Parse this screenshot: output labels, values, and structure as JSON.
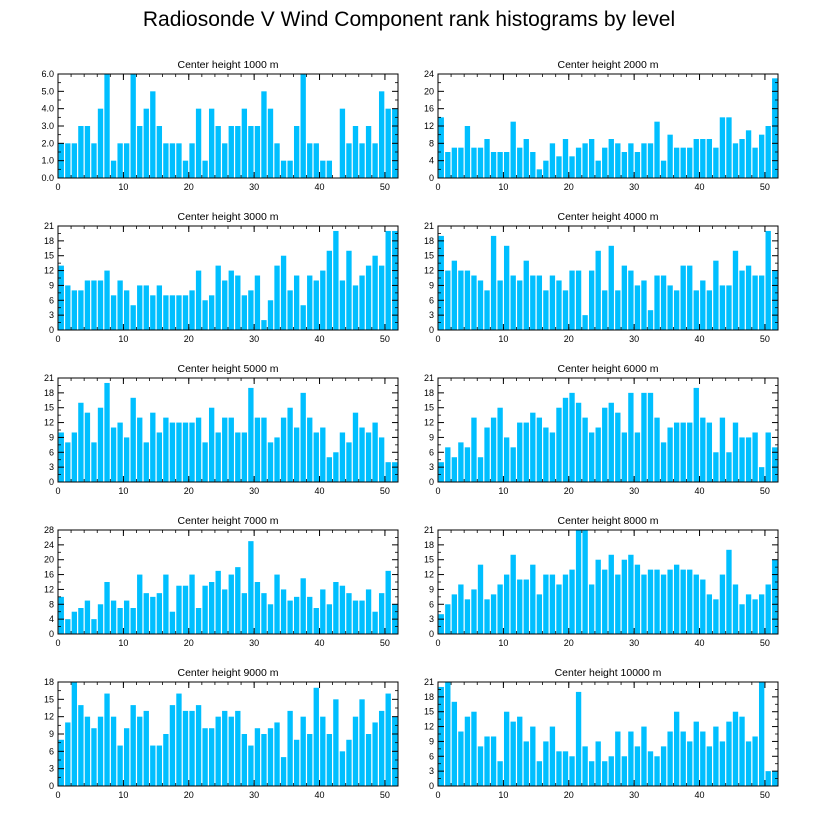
{
  "title": "Radiosonde V Wind Component rank histograms by level",
  "colors": {
    "bar": "#00bfff",
    "frame": "#000000",
    "background": "#ffffff"
  },
  "chart_data": [
    {
      "type": "bar",
      "title": "Center height 1000 m",
      "x": [
        0,
        1,
        2,
        3,
        4,
        5,
        6,
        7,
        8,
        9,
        10,
        11,
        12,
        13,
        14,
        15,
        16,
        17,
        18,
        19,
        20,
        21,
        22,
        23,
        24,
        25,
        26,
        27,
        28,
        29,
        30,
        31,
        32,
        33,
        34,
        35,
        36,
        37,
        38,
        39,
        40,
        41,
        42,
        43,
        44,
        45,
        46,
        47,
        48,
        49,
        50,
        51
      ],
      "values": [
        2,
        2,
        2,
        3,
        3,
        2,
        4,
        6,
        1,
        2,
        2,
        6,
        3,
        4,
        5,
        3,
        2,
        2,
        2,
        1,
        2,
        4,
        1,
        4,
        3,
        2,
        3,
        3,
        4,
        3,
        3,
        5,
        4,
        2,
        1,
        1,
        3,
        6,
        2,
        2,
        1,
        1,
        0,
        4,
        2,
        3,
        2,
        3,
        2,
        5,
        4,
        4
      ],
      "xlim": [
        0,
        52
      ],
      "ylim": [
        0,
        6
      ],
      "xticks": [
        0,
        10,
        20,
        30,
        40,
        50
      ],
      "yticks": [
        0,
        1,
        2,
        3,
        4,
        5,
        6
      ],
      "ytick_labels": [
        "0.0",
        "1.0",
        "2.0",
        "3.0",
        "4.0",
        "5.0",
        "6.0"
      ]
    },
    {
      "type": "bar",
      "title": "Center height 2000 m",
      "x": [
        0,
        1,
        2,
        3,
        4,
        5,
        6,
        7,
        8,
        9,
        10,
        11,
        12,
        13,
        14,
        15,
        16,
        17,
        18,
        19,
        20,
        21,
        22,
        23,
        24,
        25,
        26,
        27,
        28,
        29,
        30,
        31,
        32,
        33,
        34,
        35,
        36,
        37,
        38,
        39,
        40,
        41,
        42,
        43,
        44,
        45,
        46,
        47,
        48,
        49,
        50,
        51
      ],
      "values": [
        14,
        6,
        7,
        7,
        12,
        7,
        7,
        9,
        6,
        6,
        6,
        13,
        7,
        9,
        6,
        2,
        4,
        8,
        5,
        9,
        5,
        7,
        8,
        9,
        4,
        7,
        9,
        8,
        6,
        8,
        6,
        8,
        8,
        13,
        4,
        10,
        7,
        7,
        7,
        9,
        9,
        9,
        7,
        14,
        14,
        8,
        9,
        11,
        7,
        10,
        12,
        23
      ],
      "xlim": [
        0,
        52
      ],
      "ylim": [
        0,
        24
      ],
      "xticks": [
        0,
        10,
        20,
        30,
        40,
        50
      ],
      "yticks": [
        0,
        4,
        8,
        12,
        16,
        20,
        24
      ],
      "ytick_labels": [
        "0",
        "4",
        "8",
        "12",
        "16",
        "20",
        "24"
      ]
    },
    {
      "type": "bar",
      "title": "Center height 3000 m",
      "x": [
        0,
        1,
        2,
        3,
        4,
        5,
        6,
        7,
        8,
        9,
        10,
        11,
        12,
        13,
        14,
        15,
        16,
        17,
        18,
        19,
        20,
        21,
        22,
        23,
        24,
        25,
        26,
        27,
        28,
        29,
        30,
        31,
        32,
        33,
        34,
        35,
        36,
        37,
        38,
        39,
        40,
        41,
        42,
        43,
        44,
        45,
        46,
        47,
        48,
        49,
        50,
        51
      ],
      "values": [
        13,
        9,
        8,
        8,
        10,
        10,
        10,
        12,
        7,
        10,
        8,
        5,
        9,
        9,
        7,
        9,
        7,
        7,
        7,
        7,
        8,
        12,
        6,
        7,
        13,
        10,
        12,
        11,
        7,
        8,
        11,
        2,
        6,
        13,
        15,
        8,
        11,
        5,
        11,
        10,
        12,
        16,
        20,
        10,
        16,
        9,
        11,
        13,
        15,
        13,
        20,
        20
      ],
      "xlim": [
        0,
        52
      ],
      "ylim": [
        0,
        21
      ],
      "xticks": [
        0,
        10,
        20,
        30,
        40,
        50
      ],
      "yticks": [
        0,
        3,
        6,
        9,
        12,
        15,
        18,
        21
      ],
      "ytick_labels": [
        "0",
        "3",
        "6",
        "9",
        "12",
        "15",
        "18",
        "21"
      ]
    },
    {
      "type": "bar",
      "title": "Center height 4000 m",
      "x": [
        0,
        1,
        2,
        3,
        4,
        5,
        6,
        7,
        8,
        9,
        10,
        11,
        12,
        13,
        14,
        15,
        16,
        17,
        18,
        19,
        20,
        21,
        22,
        23,
        24,
        25,
        26,
        27,
        28,
        29,
        30,
        31,
        32,
        33,
        34,
        35,
        36,
        37,
        38,
        39,
        40,
        41,
        42,
        43,
        44,
        45,
        46,
        47,
        48,
        49,
        50,
        51
      ],
      "values": [
        19,
        12,
        14,
        12,
        12,
        11,
        10,
        8,
        19,
        10,
        17,
        11,
        10,
        14,
        11,
        11,
        8,
        11,
        10,
        8,
        12,
        12,
        3,
        12,
        16,
        8,
        17,
        8,
        13,
        12,
        9,
        10,
        4,
        11,
        11,
        9,
        8,
        13,
        13,
        8,
        10,
        8,
        14,
        9,
        9,
        16,
        12,
        13,
        11,
        11,
        20,
        12
      ],
      "xlim": [
        0,
        52
      ],
      "ylim": [
        0,
        21
      ],
      "xticks": [
        0,
        10,
        20,
        30,
        40,
        50
      ],
      "yticks": [
        0,
        3,
        6,
        9,
        12,
        15,
        18,
        21
      ],
      "ytick_labels": [
        "0",
        "3",
        "6",
        "9",
        "12",
        "15",
        "18",
        "21"
      ]
    },
    {
      "type": "bar",
      "title": "Center height 5000 m",
      "x": [
        0,
        1,
        2,
        3,
        4,
        5,
        6,
        7,
        8,
        9,
        10,
        11,
        12,
        13,
        14,
        15,
        16,
        17,
        18,
        19,
        20,
        21,
        22,
        23,
        24,
        25,
        26,
        27,
        28,
        29,
        30,
        31,
        32,
        33,
        34,
        35,
        36,
        37,
        38,
        39,
        40,
        41,
        42,
        43,
        44,
        45,
        46,
        47,
        48,
        49,
        50,
        51
      ],
      "values": [
        10,
        8,
        10,
        16,
        14,
        8,
        15,
        20,
        11,
        12,
        9,
        17,
        13,
        8,
        14,
        10,
        13,
        12,
        12,
        12,
        12,
        13,
        8,
        15,
        10,
        13,
        13,
        10,
        10,
        19,
        13,
        13,
        8,
        9,
        13,
        15,
        11,
        18,
        13,
        10,
        11,
        5,
        6,
        10,
        8,
        14,
        11,
        10,
        12,
        9,
        4,
        4
      ],
      "xlim": [
        0,
        52
      ],
      "ylim": [
        0,
        21
      ],
      "xticks": [
        0,
        10,
        20,
        30,
        40,
        50
      ],
      "yticks": [
        0,
        3,
        6,
        9,
        12,
        15,
        18,
        21
      ],
      "ytick_labels": [
        "0",
        "3",
        "6",
        "9",
        "12",
        "15",
        "18",
        "21"
      ]
    },
    {
      "type": "bar",
      "title": "Center height 6000 m",
      "x": [
        0,
        1,
        2,
        3,
        4,
        5,
        6,
        7,
        8,
        9,
        10,
        11,
        12,
        13,
        14,
        15,
        16,
        17,
        18,
        19,
        20,
        21,
        22,
        23,
        24,
        25,
        26,
        27,
        28,
        29,
        30,
        31,
        32,
        33,
        34,
        35,
        36,
        37,
        38,
        39,
        40,
        41,
        42,
        43,
        44,
        45,
        46,
        47,
        48,
        49,
        50,
        51
      ],
      "values": [
        4,
        7,
        5,
        8,
        7,
        13,
        5,
        11,
        13,
        15,
        9,
        7,
        12,
        12,
        14,
        13,
        11,
        10,
        15,
        17,
        18,
        16,
        13,
        10,
        11,
        15,
        16,
        14,
        10,
        18,
        10,
        18,
        18,
        13,
        8,
        11,
        12,
        12,
        12,
        19,
        13,
        12,
        6,
        13,
        6,
        12,
        9,
        9,
        10,
        3,
        10,
        7
      ],
      "xlim": [
        0,
        52
      ],
      "ylim": [
        0,
        21
      ],
      "xticks": [
        0,
        10,
        20,
        30,
        40,
        50
      ],
      "yticks": [
        0,
        3,
        6,
        9,
        12,
        15,
        18,
        21
      ],
      "ytick_labels": [
        "0",
        "3",
        "6",
        "9",
        "12",
        "15",
        "18",
        "21"
      ]
    },
    {
      "type": "bar",
      "title": "Center height 7000 m",
      "x": [
        0,
        1,
        2,
        3,
        4,
        5,
        6,
        7,
        8,
        9,
        10,
        11,
        12,
        13,
        14,
        15,
        16,
        17,
        18,
        19,
        20,
        21,
        22,
        23,
        24,
        25,
        26,
        27,
        28,
        29,
        30,
        31,
        32,
        33,
        34,
        35,
        36,
        37,
        38,
        39,
        40,
        41,
        42,
        43,
        44,
        45,
        46,
        47,
        48,
        49,
        50,
        51
      ],
      "values": [
        10,
        4,
        6,
        7,
        9,
        4,
        8,
        14,
        9,
        7,
        9,
        7,
        16,
        11,
        10,
        11,
        16,
        6,
        13,
        13,
        16,
        7,
        13,
        14,
        17,
        12,
        16,
        18,
        11,
        25,
        14,
        11,
        8,
        16,
        12,
        9,
        10,
        15,
        10,
        7,
        12,
        8,
        14,
        13,
        11,
        9,
        9,
        12,
        6,
        11,
        17,
        8
      ],
      "xlim": [
        0,
        52
      ],
      "ylim": [
        0,
        28
      ],
      "xticks": [
        0,
        10,
        20,
        30,
        40,
        50
      ],
      "yticks": [
        0,
        4,
        8,
        12,
        16,
        20,
        24,
        28
      ],
      "ytick_labels": [
        "0",
        "4",
        "8",
        "12",
        "16",
        "20",
        "24",
        "28"
      ]
    },
    {
      "type": "bar",
      "title": "Center height 8000 m",
      "x": [
        0,
        1,
        2,
        3,
        4,
        5,
        6,
        7,
        8,
        9,
        10,
        11,
        12,
        13,
        14,
        15,
        16,
        17,
        18,
        19,
        20,
        21,
        22,
        23,
        24,
        25,
        26,
        27,
        28,
        29,
        30,
        31,
        32,
        33,
        34,
        35,
        36,
        37,
        38,
        39,
        40,
        41,
        42,
        43,
        44,
        45,
        46,
        47,
        48,
        49,
        50,
        51
      ],
      "values": [
        4,
        6,
        8,
        10,
        7,
        9,
        14,
        7,
        8,
        10,
        12,
        16,
        11,
        11,
        14,
        8,
        12,
        12,
        10,
        12,
        13,
        21,
        21,
        10,
        15,
        13,
        16,
        12,
        15,
        16,
        14,
        12,
        13,
        13,
        12,
        13,
        14,
        13,
        13,
        12,
        11,
        8,
        7,
        12,
        17,
        10,
        6,
        8,
        7,
        8,
        10,
        15
      ],
      "xlim": [
        0,
        52
      ],
      "ylim": [
        0,
        21
      ],
      "xticks": [
        0,
        10,
        20,
        30,
        40,
        50
      ],
      "yticks": [
        0,
        3,
        6,
        9,
        12,
        15,
        18,
        21
      ],
      "ytick_labels": [
        "0",
        "3",
        "6",
        "9",
        "12",
        "15",
        "18",
        "21"
      ]
    },
    {
      "type": "bar",
      "title": "Center height 9000 m",
      "x": [
        0,
        1,
        2,
        3,
        4,
        5,
        6,
        7,
        8,
        9,
        10,
        11,
        12,
        13,
        14,
        15,
        16,
        17,
        18,
        19,
        20,
        21,
        22,
        23,
        24,
        25,
        26,
        27,
        28,
        29,
        30,
        31,
        32,
        33,
        34,
        35,
        36,
        37,
        38,
        39,
        40,
        41,
        42,
        43,
        44,
        45,
        46,
        47,
        48,
        49,
        50,
        51
      ],
      "values": [
        8,
        11,
        18,
        14,
        12,
        10,
        12,
        16,
        12,
        7,
        10,
        14,
        12,
        13,
        7,
        7,
        9,
        14,
        16,
        13,
        13,
        14,
        10,
        10,
        12,
        13,
        12,
        13,
        9,
        7,
        10,
        9,
        10,
        11,
        5,
        13,
        8,
        12,
        9,
        17,
        12,
        9,
        15,
        6,
        8,
        12,
        15,
        9,
        11,
        13,
        16,
        12
      ],
      "xlim": [
        0,
        52
      ],
      "ylim": [
        0,
        18
      ],
      "xticks": [
        0,
        10,
        20,
        30,
        40,
        50
      ],
      "yticks": [
        0,
        3,
        6,
        9,
        12,
        15,
        18
      ],
      "ytick_labels": [
        "0",
        "3",
        "6",
        "9",
        "12",
        "15",
        "18"
      ]
    },
    {
      "type": "bar",
      "title": "Center height 10000 m",
      "x": [
        0,
        1,
        2,
        3,
        4,
        5,
        6,
        7,
        8,
        9,
        10,
        11,
        12,
        13,
        14,
        15,
        16,
        17,
        18,
        19,
        20,
        21,
        22,
        23,
        24,
        25,
        26,
        27,
        28,
        29,
        30,
        31,
        32,
        33,
        34,
        35,
        36,
        37,
        38,
        39,
        40,
        41,
        42,
        43,
        44,
        45,
        46,
        47,
        48,
        49,
        50,
        51
      ],
      "values": [
        20,
        21,
        17,
        11,
        14,
        15,
        8,
        10,
        10,
        5,
        15,
        13,
        14,
        9,
        12,
        5,
        9,
        12,
        7,
        7,
        6,
        19,
        8,
        5,
        9,
        5,
        6,
        11,
        6,
        11,
        8,
        12,
        7,
        6,
        8,
        11,
        15,
        11,
        9,
        13,
        11,
        8,
        12,
        9,
        13,
        15,
        14,
        9,
        10,
        21,
        3,
        3
      ],
      "xlim": [
        0,
        52
      ],
      "ylim": [
        0,
        21
      ],
      "xticks": [
        0,
        10,
        20,
        30,
        40,
        50
      ],
      "yticks": [
        0,
        3,
        6,
        9,
        12,
        15,
        18,
        21
      ],
      "ytick_labels": [
        "0",
        "3",
        "6",
        "9",
        "12",
        "15",
        "18",
        "21"
      ]
    }
  ]
}
